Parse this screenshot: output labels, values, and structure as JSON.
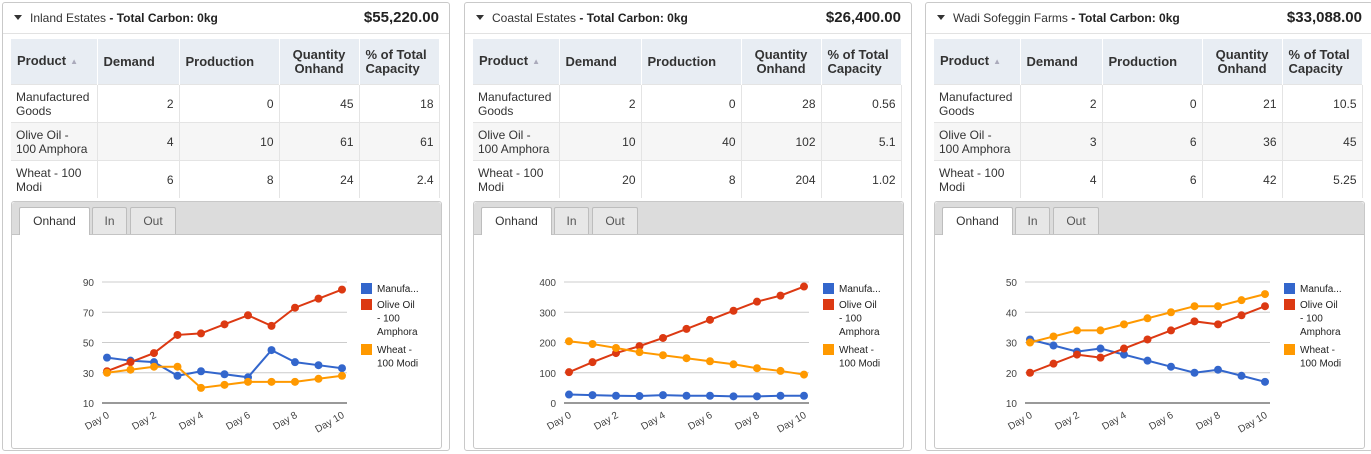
{
  "headers": {
    "product": "Product",
    "demand": "Demand",
    "production": "Production",
    "quantity_onhand": [
      "Quantity",
      "Onhand"
    ],
    "pct_total_capacity": [
      "% of Total",
      "Capacity"
    ]
  },
  "tabs": [
    "Onhand",
    "In",
    "Out"
  ],
  "legend_labels": [
    [
      "Manufa..."
    ],
    [
      "Olive Oil",
      "- 100",
      "Amphora"
    ],
    [
      "Wheat -",
      "100 Modi"
    ]
  ],
  "series_colors": [
    "#3366cc",
    "#dc3912",
    "#ff9900"
  ],
  "estates": [
    {
      "name": "Inland Estates",
      "carbon": " - Total Carbon: 0kg",
      "value": "$55,220.00",
      "rows": [
        {
          "product": [
            "Manufactured",
            "Goods"
          ],
          "demand": "2",
          "production": "0",
          "onhand": "45",
          "pct": "18"
        },
        {
          "product": [
            "Olive Oil -",
            "100 Amphora"
          ],
          "demand": "4",
          "production": "10",
          "onhand": "61",
          "pct": "61"
        },
        {
          "product": [
            "Wheat - 100",
            "Modi"
          ],
          "demand": "6",
          "production": "8",
          "onhand": "24",
          "pct": "2.4"
        }
      ],
      "chart_data": {
        "type": "line",
        "x": [
          "Day 0",
          "Day 1",
          "Day 2",
          "Day 3",
          "Day 4",
          "Day 5",
          "Day 6",
          "Day 7",
          "Day 8",
          "Day 9",
          "Day 10"
        ],
        "xticks": [
          "Day 0",
          "Day 2",
          "Day 4",
          "Day 6",
          "Day 8",
          "Day 10"
        ],
        "yticks": [
          10,
          30,
          50,
          70,
          90
        ],
        "ylim": [
          10,
          90
        ],
        "series": [
          {
            "name": "Manufa...",
            "values": [
              40,
              38,
              37,
              28,
              31,
              29,
              27,
              45,
              37,
              35,
              33
            ]
          },
          {
            "name": "Olive Oil - 100 Amphora",
            "values": [
              31,
              37,
              43,
              55,
              56,
              62,
              68,
              61,
              73,
              79,
              85
            ]
          },
          {
            "name": "Wheat - 100 Modi",
            "values": [
              30,
              32,
              34,
              34,
              20,
              22,
              24,
              24,
              24,
              26,
              28
            ]
          }
        ]
      }
    },
    {
      "name": "Coastal Estates",
      "carbon": " - Total Carbon: 0kg",
      "value": "$26,400.00",
      "rows": [
        {
          "product": [
            "Manufactured",
            "Goods"
          ],
          "demand": "2",
          "production": "0",
          "onhand": "28",
          "pct": "0.56"
        },
        {
          "product": [
            "Olive Oil -",
            "100 Amphora"
          ],
          "demand": "10",
          "production": "40",
          "onhand": "102",
          "pct": "5.1"
        },
        {
          "product": [
            "Wheat - 100",
            "Modi"
          ],
          "demand": "20",
          "production": "8",
          "onhand": "204",
          "pct": "1.02"
        }
      ],
      "chart_data": {
        "type": "line",
        "x": [
          "Day 0",
          "Day 1",
          "Day 2",
          "Day 3",
          "Day 4",
          "Day 5",
          "Day 6",
          "Day 7",
          "Day 8",
          "Day 9",
          "Day 10"
        ],
        "xticks": [
          "Day 0",
          "Day 2",
          "Day 4",
          "Day 6",
          "Day 8",
          "Day 10"
        ],
        "yticks": [
          0,
          100,
          200,
          300,
          400
        ],
        "ylim": [
          0,
          400
        ],
        "series": [
          {
            "name": "Manufa...",
            "values": [
              28,
              26,
              24,
              23,
              26,
              24,
              24,
              22,
              22,
              24,
              24
            ]
          },
          {
            "name": "Olive Oil - 100 Amphora",
            "values": [
              102,
              135,
              165,
              188,
              215,
              245,
              275,
              305,
              335,
              355,
              385
            ]
          },
          {
            "name": "Wheat - 100 Modi",
            "values": [
              204,
              195,
              182,
              168,
              158,
              148,
              138,
              128,
              115,
              106,
              94
            ]
          }
        ]
      }
    },
    {
      "name": "Wadi Sofeggin Farms",
      "carbon": " - Total Carbon: 0kg",
      "value": "$33,088.00",
      "rows": [
        {
          "product": [
            "Manufactured",
            "Goods"
          ],
          "demand": "2",
          "production": "0",
          "onhand": "21",
          "pct": "10.5"
        },
        {
          "product": [
            "Olive Oil -",
            "100 Amphora"
          ],
          "demand": "3",
          "production": "6",
          "onhand": "36",
          "pct": "45"
        },
        {
          "product": [
            "Wheat - 100",
            "Modi"
          ],
          "demand": "4",
          "production": "6",
          "onhand": "42",
          "pct": "5.25"
        }
      ],
      "chart_data": {
        "type": "line",
        "x": [
          "Day 0",
          "Day 1",
          "Day 2",
          "Day 3",
          "Day 4",
          "Day 5",
          "Day 6",
          "Day 7",
          "Day 8",
          "Day 9",
          "Day 10"
        ],
        "xticks": [
          "Day 0",
          "Day 2",
          "Day 4",
          "Day 6",
          "Day 8",
          "Day 10"
        ],
        "yticks": [
          10,
          20,
          30,
          40,
          50
        ],
        "ylim": [
          10,
          50
        ],
        "series": [
          {
            "name": "Manufa...",
            "values": [
              31,
              29,
              27,
              28,
              26,
              24,
              22,
              20,
              21,
              19,
              17
            ]
          },
          {
            "name": "Olive Oil - 100 Amphora",
            "values": [
              20,
              23,
              26,
              25,
              28,
              31,
              34,
              37,
              36,
              39,
              42
            ]
          },
          {
            "name": "Wheat - 100 Modi",
            "values": [
              30,
              32,
              34,
              34,
              36,
              38,
              40,
              42,
              42,
              44,
              46
            ]
          }
        ]
      }
    }
  ]
}
